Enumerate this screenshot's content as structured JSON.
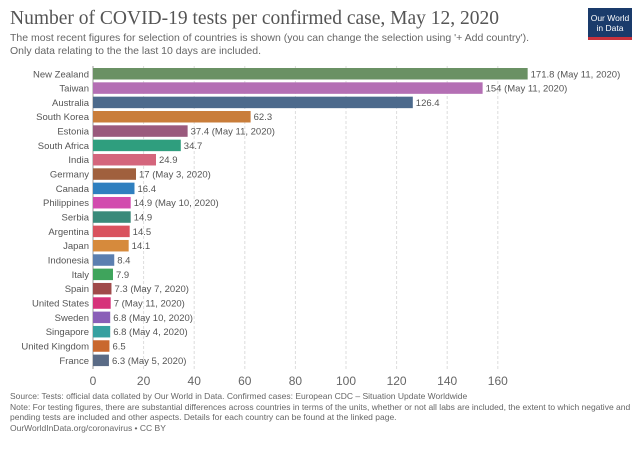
{
  "header": {
    "title": "Number of COVID-19 tests per confirmed case, May 12, 2020",
    "subtitle_line1": "The most recent figures for selection of countries is shown (you can change the selection using '+ Add country').",
    "subtitle_line2": "Only data relating to the the last 10 days are included."
  },
  "logo": {
    "line1": "Our World",
    "line2": "in Data"
  },
  "footer": {
    "source": "Source: Tests: official data collated by Our World in Data. Confirmed cases: European CDC – Situation Update Worldwide",
    "note": "Note: For testing figures, there are substantial differences across countries in terms of the units, whether or not all labs are included, the extent to which negative and pending tests are included and other aspects. Details for each country can be found at the linked page.",
    "url": "OurWorldInData.org/coronavirus • CC BY"
  },
  "chart_data": {
    "type": "bar",
    "orientation": "horizontal",
    "xlim": [
      0,
      175
    ],
    "x_ticks": [
      0,
      20,
      40,
      60,
      80,
      100,
      120,
      140,
      160
    ],
    "grid": true,
    "categories": [
      "New Zealand",
      "Taiwan",
      "Australia",
      "South Korea",
      "Estonia",
      "South Africa",
      "India",
      "Germany",
      "Canada",
      "Philippines",
      "Serbia",
      "Argentina",
      "Japan",
      "Indonesia",
      "Italy",
      "Spain",
      "United States",
      "Sweden",
      "Singapore",
      "United Kingdom",
      "France"
    ],
    "values": [
      171.8,
      154,
      126.4,
      62.3,
      37.4,
      34.7,
      24.9,
      17,
      16.4,
      14.9,
      14.9,
      14.5,
      14.1,
      8.4,
      7.9,
      7.3,
      7,
      6.8,
      6.8,
      6.5,
      6.3
    ],
    "value_labels": [
      "171.8 (May 11, 2020)",
      "154 (May 11, 2020)",
      "126.4",
      "62.3",
      "37.4 (May 11, 2020)",
      "34.7",
      "24.9",
      "17 (May 3, 2020)",
      "16.4",
      "14.9 (May 10, 2020)",
      "14.9",
      "14.5",
      "14.1",
      "8.4",
      "7.9",
      "7.3 (May 7, 2020)",
      "7 (May 11, 2020)",
      "6.8 (May 10, 2020)",
      "6.8 (May 4, 2020)",
      "6.5",
      "6.3 (May 5, 2020)"
    ],
    "colors": [
      "#6a9164",
      "#b46fb4",
      "#4c6a8c",
      "#c97d3a",
      "#9a5a7d",
      "#2f9e7e",
      "#d4657c",
      "#a0603d",
      "#2f7fbf",
      "#d24bae",
      "#3a8a7a",
      "#d9525e",
      "#d68a3c",
      "#5b7fb0",
      "#3fa45c",
      "#a04a4a",
      "#d6337a",
      "#8a5fb8",
      "#36a0a0",
      "#c9682e",
      "#5a6b86"
    ]
  }
}
